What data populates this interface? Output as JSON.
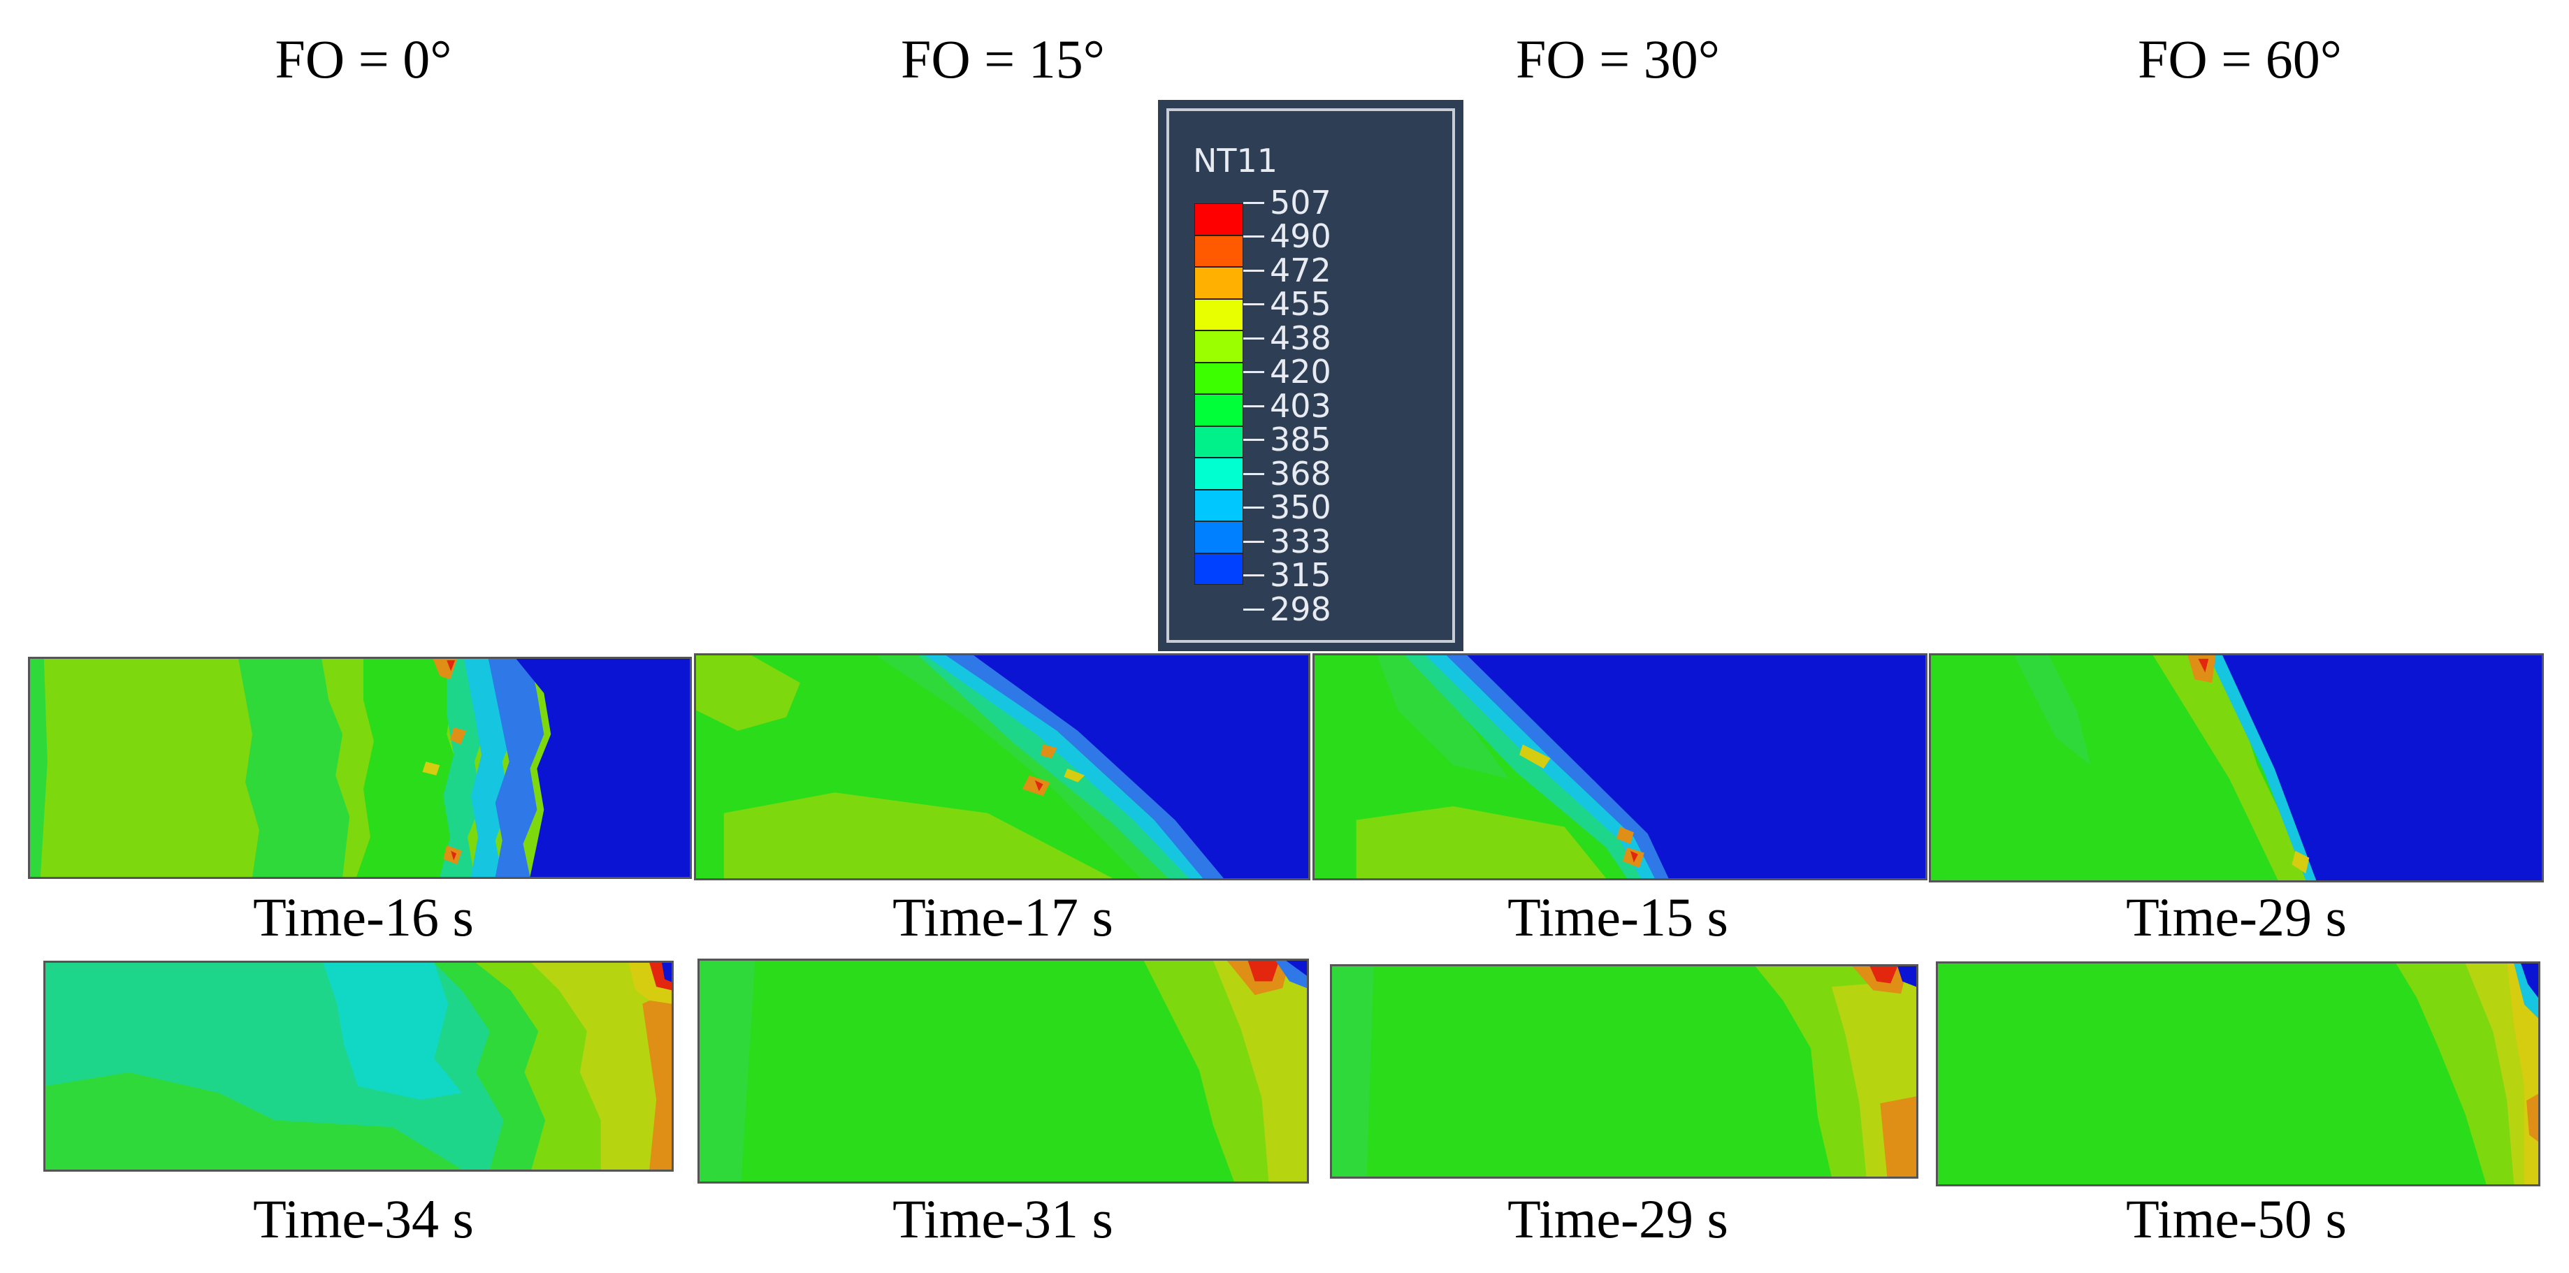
{
  "columns": [
    {
      "title": "FO = 0°"
    },
    {
      "title": "FO = 15°"
    },
    {
      "title": "FO = 30°"
    },
    {
      "title": "FO = 60°"
    }
  ],
  "row1_captions": [
    "Time-16 s",
    "Time-17 s",
    "Time-15 s",
    "Time-29 s"
  ],
  "row2_captions": [
    "Time-34 s",
    "Time-31 s",
    "Time-29 s",
    "Time-50 s"
  ],
  "legend": {
    "title": "NT11",
    "values": [
      "507",
      "490",
      "472",
      "455",
      "438",
      "420",
      "403",
      "385",
      "368",
      "350",
      "333",
      "315",
      "298"
    ],
    "colors": [
      "#ff0000",
      "#ff5a00",
      "#ffb000",
      "#e8ff00",
      "#9cff00",
      "#3cff00",
      "#00ff38",
      "#00f08a",
      "#00ffd0",
      "#00c8ff",
      "#0080ff",
      "#0040ff",
      "#0000ff"
    ]
  },
  "field_colors": {
    "cold": "#0a14d2",
    "deep_blue": "#1d3fd8",
    "blue": "#2f78e8",
    "cyan": "#16c6e0",
    "aqua": "#10d8c4",
    "teal": "#1ed68a",
    "green": "#2fd93a",
    "bright_green": "#2bdc1a",
    "lime": "#7ed80e",
    "yellow_green": "#b6d410",
    "yellow": "#d6cc10",
    "orange": "#e08f16",
    "red": "#e3260e"
  }
}
